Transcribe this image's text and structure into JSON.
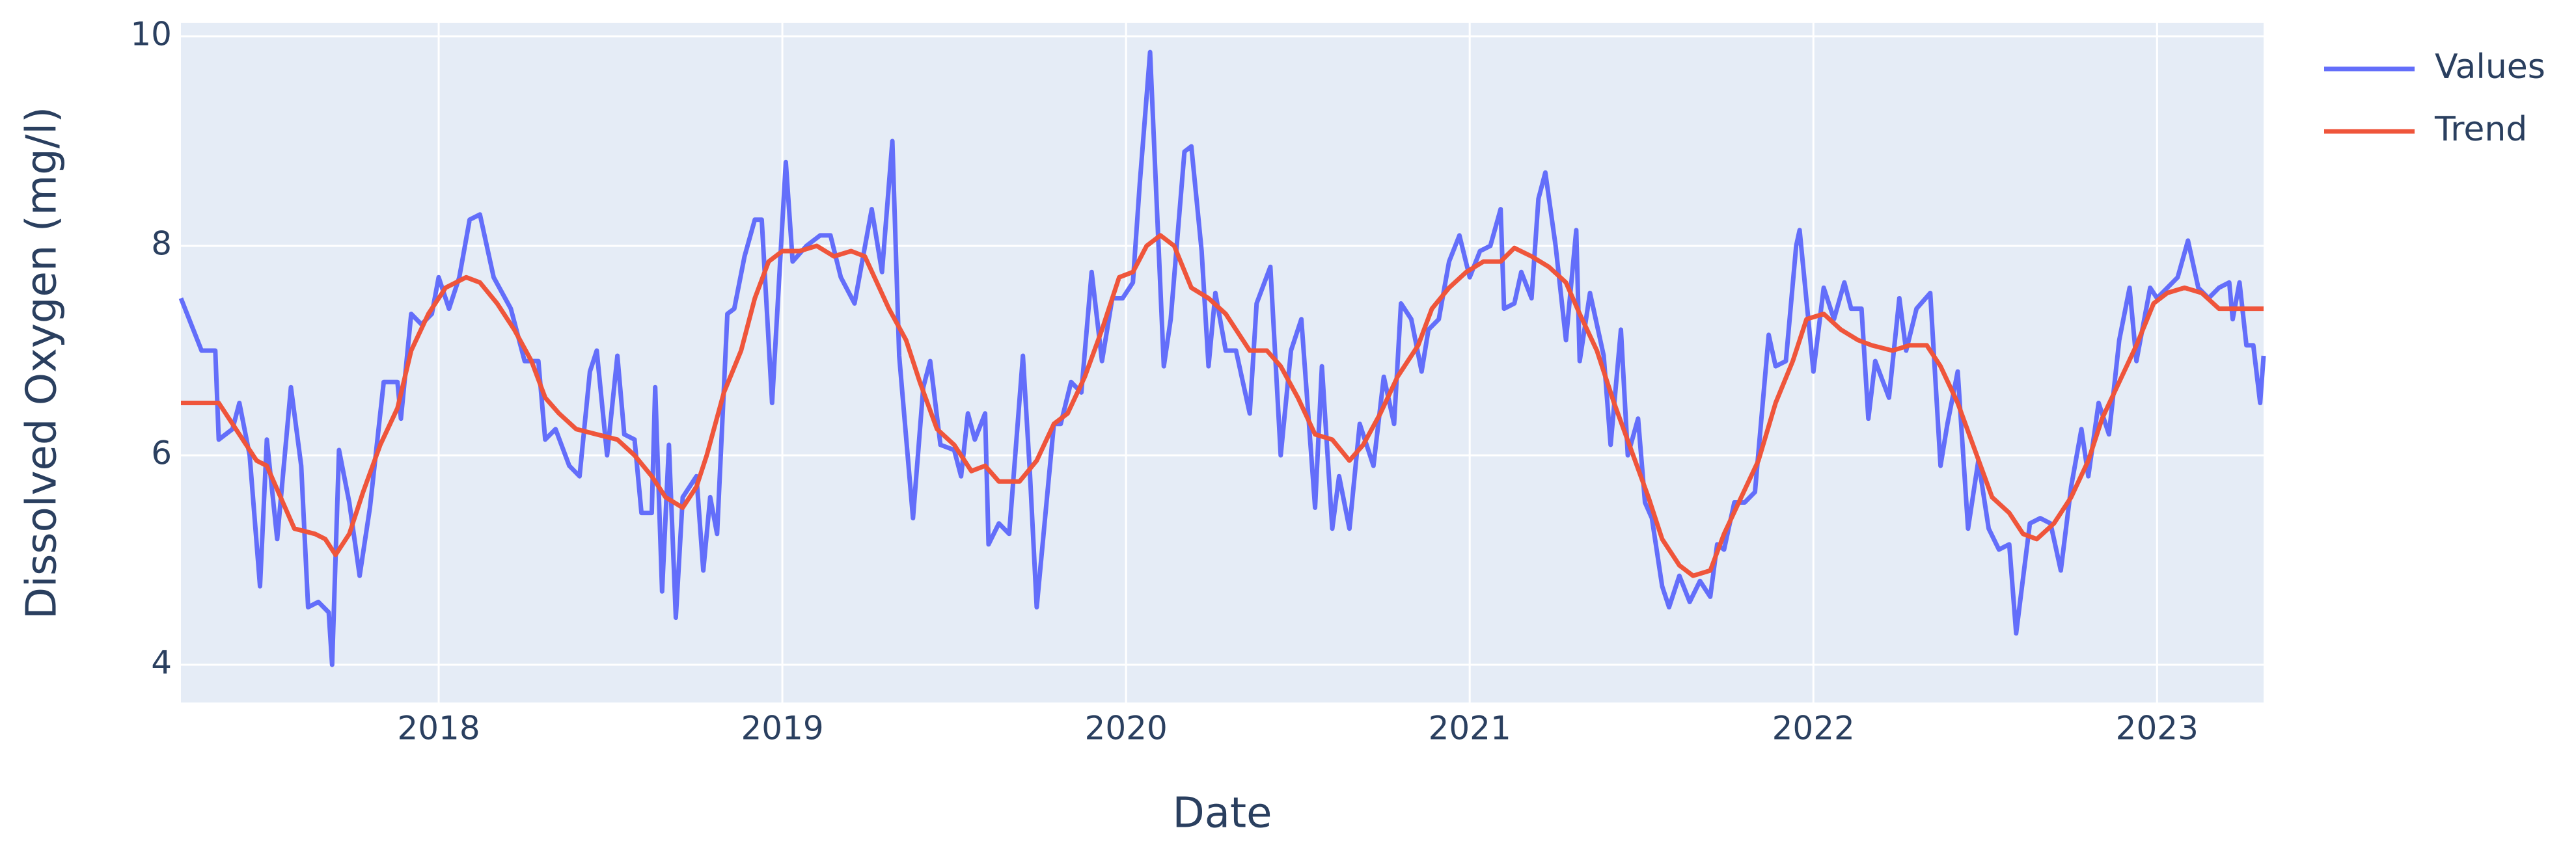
{
  "chart_data": {
    "type": "line",
    "x_label": "Date",
    "y_label": "Dissolved Oxygen (mg/l)",
    "xlim": [
      2017.25,
      2023.31
    ],
    "xticks": [
      2018,
      2019,
      2020,
      2021,
      2022,
      2023
    ],
    "ylim": [
      3.64,
      10.13
    ],
    "yticks": [
      4,
      6,
      8,
      10
    ],
    "grid": true,
    "series": [
      {
        "name": "Values",
        "color": "#636efa",
        "x": [
          2017.25,
          2017.31,
          2017.35,
          2017.36,
          2017.4,
          2017.42,
          2017.45,
          2017.48,
          2017.5,
          2017.53,
          2017.57,
          2017.6,
          2017.62,
          2017.65,
          2017.68,
          2017.69,
          2017.71,
          2017.74,
          2017.77,
          2017.8,
          2017.84,
          2017.88,
          2017.89,
          2017.92,
          2017.95,
          2017.98,
          2018.0,
          2018.03,
          2018.06,
          2018.09,
          2018.12,
          2018.16,
          2018.21,
          2018.25,
          2018.29,
          2018.31,
          2018.34,
          2018.38,
          2018.41,
          2018.44,
          2018.46,
          2018.49,
          2018.52,
          2018.54,
          2018.57,
          2018.59,
          2018.62,
          2018.63,
          2018.65,
          2018.67,
          2018.69,
          2018.71,
          2018.75,
          2018.77,
          2018.79,
          2018.81,
          2018.84,
          2018.86,
          2018.89,
          2018.92,
          2018.94,
          2018.97,
          2019.01,
          2019.03,
          2019.07,
          2019.11,
          2019.14,
          2019.17,
          2019.21,
          2019.26,
          2019.29,
          2019.32,
          2019.34,
          2019.38,
          2019.41,
          2019.43,
          2019.46,
          2019.5,
          2019.52,
          2019.54,
          2019.56,
          2019.59,
          2019.6,
          2019.63,
          2019.66,
          2019.7,
          2019.72,
          2019.74,
          2019.79,
          2019.81,
          2019.84,
          2019.87,
          2019.9,
          2019.93,
          2019.96,
          2019.99,
          2020.02,
          2020.04,
          2020.07,
          2020.11,
          2020.13,
          2020.17,
          2020.19,
          2020.22,
          2020.24,
          2020.26,
          2020.29,
          2020.32,
          2020.36,
          2020.38,
          2020.42,
          2020.45,
          2020.48,
          2020.51,
          2020.55,
          2020.57,
          2020.6,
          2020.62,
          2020.65,
          2020.68,
          2020.72,
          2020.75,
          2020.78,
          2020.8,
          2020.83,
          2020.86,
          2020.88,
          2020.91,
          2020.94,
          2020.97,
          2021.0,
          2021.03,
          2021.06,
          2021.09,
          2021.1,
          2021.13,
          2021.15,
          2021.18,
          2021.2,
          2021.22,
          2021.25,
          2021.28,
          2021.31,
          2021.32,
          2021.35,
          2021.39,
          2021.41,
          2021.44,
          2021.46,
          2021.49,
          2021.51,
          2021.53,
          2021.56,
          2021.58,
          2021.61,
          2021.64,
          2021.67,
          2021.7,
          2021.72,
          2021.74,
          2021.77,
          2021.8,
          2021.83,
          2021.87,
          2021.89,
          2021.92,
          2021.95,
          2021.96,
          2022.0,
          2022.03,
          2022.06,
          2022.09,
          2022.11,
          2022.14,
          2022.16,
          2022.18,
          2022.22,
          2022.25,
          2022.27,
          2022.3,
          2022.34,
          2022.37,
          2022.39,
          2022.42,
          2022.45,
          2022.48,
          2022.51,
          2022.54,
          2022.57,
          2022.59,
          2022.63,
          2022.66,
          2022.69,
          2022.72,
          2022.75,
          2022.78,
          2022.8,
          2022.83,
          2022.86,
          2022.89,
          2022.92,
          2022.94,
          2022.98,
          2023.0,
          2023.03,
          2023.06,
          2023.09,
          2023.12,
          2023.15,
          2023.18,
          2023.21,
          2023.22,
          2023.24,
          2023.26,
          2023.28,
          2023.3,
          2023.31
        ],
        "values": [
          7.5,
          7.0,
          7.0,
          6.15,
          6.25,
          6.5,
          6.0,
          4.75,
          6.15,
          5.2,
          6.65,
          5.9,
          4.55,
          4.6,
          4.5,
          4.0,
          6.05,
          5.55,
          4.85,
          5.5,
          6.7,
          6.7,
          6.35,
          7.35,
          7.25,
          7.35,
          7.7,
          7.4,
          7.7,
          8.25,
          8.3,
          7.7,
          7.4,
          6.9,
          6.9,
          6.15,
          6.25,
          5.9,
          5.8,
          6.8,
          7.0,
          6.0,
          6.95,
          6.2,
          6.15,
          5.45,
          5.45,
          6.65,
          4.7,
          6.1,
          4.45,
          5.6,
          5.8,
          4.9,
          5.6,
          5.25,
          7.35,
          7.4,
          7.9,
          8.25,
          8.25,
          6.5,
          8.8,
          7.85,
          8.0,
          8.1,
          8.1,
          7.7,
          7.45,
          8.35,
          7.75,
          9.0,
          6.95,
          5.4,
          6.65,
          6.9,
          6.1,
          6.05,
          5.8,
          6.4,
          6.15,
          6.4,
          5.15,
          5.35,
          5.25,
          6.95,
          5.85,
          4.55,
          6.3,
          6.3,
          6.7,
          6.6,
          7.75,
          6.9,
          7.5,
          7.5,
          7.65,
          8.6,
          9.85,
          6.85,
          7.3,
          8.9,
          8.95,
          7.95,
          6.85,
          7.55,
          7.0,
          7.0,
          6.4,
          7.45,
          7.8,
          6.0,
          7.0,
          7.3,
          5.5,
          6.85,
          5.3,
          5.8,
          5.3,
          6.3,
          5.9,
          6.75,
          6.3,
          7.45,
          7.3,
          6.8,
          7.2,
          7.3,
          7.85,
          8.1,
          7.7,
          7.95,
          8.0,
          8.35,
          7.4,
          7.45,
          7.75,
          7.5,
          8.45,
          8.7,
          8.0,
          7.1,
          8.15,
          6.9,
          7.55,
          6.95,
          6.1,
          7.2,
          6.0,
          6.35,
          5.55,
          5.4,
          4.75,
          4.55,
          4.85,
          4.6,
          4.8,
          4.65,
          5.15,
          5.1,
          5.55,
          5.55,
          5.65,
          7.15,
          6.85,
          6.9,
          8.0,
          8.15,
          6.8,
          7.6,
          7.3,
          7.65,
          7.4,
          7.4,
          6.35,
          6.9,
          6.55,
          7.5,
          7.0,
          7.4,
          7.55,
          5.9,
          6.3,
          6.8,
          5.3,
          5.95,
          5.3,
          5.1,
          5.15,
          4.3,
          5.35,
          5.4,
          5.35,
          4.9,
          5.7,
          6.25,
          5.8,
          6.5,
          6.2,
          7.1,
          7.6,
          6.9,
          7.6,
          7.5,
          7.6,
          7.7,
          8.05,
          7.6,
          7.5,
          7.6,
          7.65,
          7.3,
          7.65,
          7.05,
          7.05,
          6.5,
          6.95
        ]
      },
      {
        "name": "Trend",
        "color": "#ef553b",
        "x": [
          2017.25,
          2017.36,
          2017.42,
          2017.47,
          2017.5,
          2017.54,
          2017.58,
          2017.64,
          2017.67,
          2017.7,
          2017.74,
          2017.78,
          2017.83,
          2017.88,
          2017.92,
          2017.97,
          2018.02,
          2018.08,
          2018.12,
          2018.17,
          2018.22,
          2018.27,
          2018.31,
          2018.35,
          2018.4,
          2018.46,
          2018.52,
          2018.57,
          2018.62,
          2018.66,
          2018.71,
          2018.75,
          2018.78,
          2018.83,
          2018.88,
          2018.92,
          2018.96,
          2019.0,
          2019.05,
          2019.1,
          2019.15,
          2019.2,
          2019.24,
          2019.31,
          2019.36,
          2019.4,
          2019.45,
          2019.5,
          2019.55,
          2019.59,
          2019.63,
          2019.69,
          2019.74,
          2019.79,
          2019.83,
          2019.88,
          2019.93,
          2019.98,
          2020.02,
          2020.06,
          2020.1,
          2020.14,
          2020.19,
          2020.24,
          2020.29,
          2020.36,
          2020.41,
          2020.45,
          2020.5,
          2020.55,
          2020.6,
          2020.65,
          2020.69,
          2020.74,
          2020.79,
          2020.85,
          2020.89,
          2020.94,
          2020.99,
          2021.04,
          2021.09,
          2021.13,
          2021.18,
          2021.23,
          2021.28,
          2021.32,
          2021.37,
          2021.42,
          2021.47,
          2021.52,
          2021.56,
          2021.61,
          2021.65,
          2021.7,
          2021.74,
          2021.79,
          2021.84,
          2021.89,
          2021.94,
          2021.98,
          2022.03,
          2022.08,
          2022.13,
          2022.17,
          2022.23,
          2022.28,
          2022.33,
          2022.37,
          2022.42,
          2022.47,
          2022.52,
          2022.57,
          2022.61,
          2022.65,
          2022.7,
          2022.75,
          2022.8,
          2022.84,
          2022.89,
          2022.94,
          2022.99,
          2023.03,
          2023.08,
          2023.13,
          2023.18,
          2023.22,
          2023.31
        ],
        "values": [
          6.5,
          6.5,
          6.2,
          5.95,
          5.9,
          5.6,
          5.3,
          5.25,
          5.2,
          5.05,
          5.25,
          5.65,
          6.1,
          6.45,
          7.0,
          7.35,
          7.6,
          7.7,
          7.65,
          7.45,
          7.2,
          6.9,
          6.55,
          6.4,
          6.25,
          6.2,
          6.15,
          6.0,
          5.8,
          5.6,
          5.5,
          5.7,
          6.0,
          6.6,
          7.0,
          7.5,
          7.85,
          7.95,
          7.95,
          8.0,
          7.9,
          7.95,
          7.9,
          7.4,
          7.1,
          6.7,
          6.25,
          6.1,
          5.85,
          5.9,
          5.75,
          5.75,
          5.95,
          6.3,
          6.4,
          6.75,
          7.2,
          7.7,
          7.75,
          8.0,
          8.1,
          8.0,
          7.6,
          7.5,
          7.35,
          7.0,
          7.0,
          6.85,
          6.55,
          6.2,
          6.15,
          5.95,
          6.1,
          6.4,
          6.75,
          7.05,
          7.4,
          7.6,
          7.75,
          7.85,
          7.85,
          7.98,
          7.9,
          7.8,
          7.65,
          7.35,
          7.0,
          6.5,
          6.05,
          5.6,
          5.2,
          4.95,
          4.85,
          4.9,
          5.25,
          5.6,
          5.95,
          6.5,
          6.9,
          7.3,
          7.35,
          7.2,
          7.1,
          7.05,
          7.0,
          7.05,
          7.05,
          6.85,
          6.5,
          6.05,
          5.6,
          5.45,
          5.25,
          5.2,
          5.35,
          5.6,
          5.95,
          6.35,
          6.7,
          7.05,
          7.45,
          7.55,
          7.6,
          7.55,
          7.4,
          7.4,
          7.4
        ]
      }
    ]
  }
}
